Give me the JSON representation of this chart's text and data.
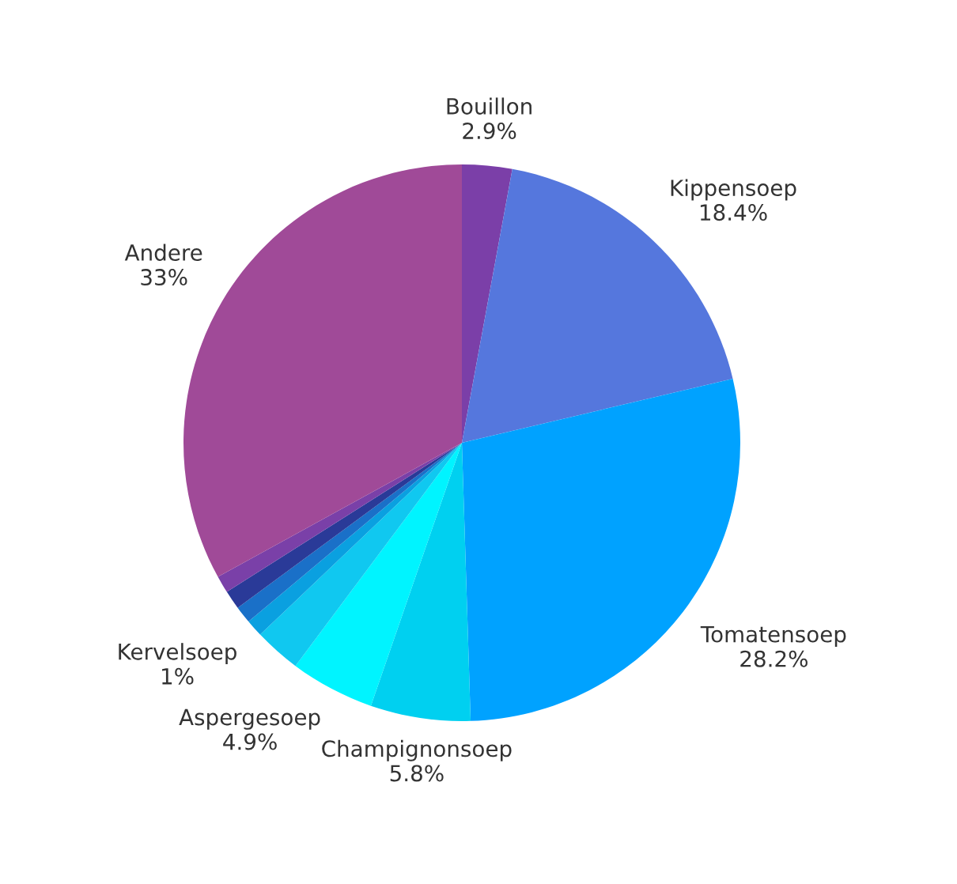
{
  "chart_data": {
    "type": "pie",
    "categories": [
      "Bouillon",
      "Kippensoep",
      "Tomatensoep",
      "Champignonsoep",
      "Aspergesoep",
      null,
      "Kervelsoep",
      null,
      null,
      null,
      "Andere"
    ],
    "values": [
      2.9,
      18.4,
      28.2,
      5.8,
      4.9,
      2.7,
      1,
      1,
      1.1,
      1,
      33
    ],
    "value_labels": [
      "2.9%",
      "18.4%",
      "28.2%",
      "5.8%",
      "4.9%",
      null,
      "1%",
      null,
      null,
      null,
      "33%"
    ],
    "colors": [
      "#7b3fa8",
      "#5577dd",
      "#00a2ff",
      "#00d0f0",
      "#00f4ff",
      "#10c8f0",
      "#0aa0e0",
      "#1a70c8",
      "#2a3a98",
      "#7a40a8",
      "#a04a98"
    ]
  }
}
